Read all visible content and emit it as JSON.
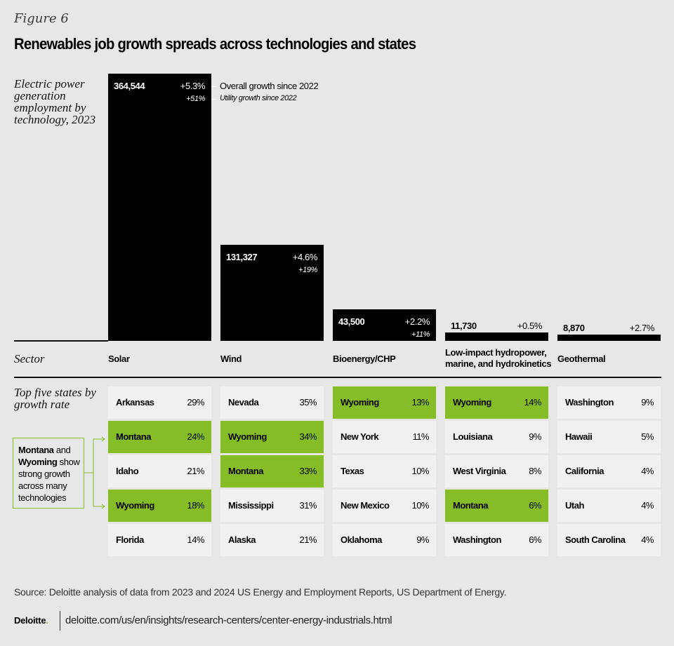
{
  "figure_label": "Figure 6",
  "title": "Renewables job growth spreads across technologies and states",
  "y_label": "Electric power generation employment by technology, 2023",
  "annotations": {
    "overall": "Overall growth since 2022",
    "utility": "Utility growth since 2022"
  },
  "row_labels": {
    "sector": "Sector",
    "top_states": "Top five states by growth rate"
  },
  "callout": {
    "bold1": "Montana",
    "text1": " and ",
    "bold2": "Wyoming",
    "text2": " show strong growth across many technologies"
  },
  "chart_data": {
    "type": "bar",
    "title": "Renewables job growth spreads across technologies and states",
    "ylabel": "Electric power generation employment by technology, 2023",
    "xlabel": "Sector",
    "categories": [
      "Solar",
      "Wind",
      "Bioenergy/CHP",
      "Low-impact hydropower, marine, and hydrokinetics",
      "Geothermal"
    ],
    "values": [
      364544,
      131327,
      43500,
      11730,
      8870
    ],
    "value_labels": [
      "364,544",
      "131,327",
      "43,500",
      "11,730",
      "8,870"
    ],
    "overall_growth_since_2022": [
      "+5.3%",
      "+4.6%",
      "+2.2%",
      "+0.5%",
      "+2.7%"
    ],
    "utility_growth_since_2022": [
      "+51%",
      "+19%",
      "+11%",
      null,
      null
    ],
    "ylim": [
      0,
      364544
    ],
    "grid": false,
    "top_states": [
      [
        {
          "state": "Arkansas",
          "pct": "29%",
          "hl": false
        },
        {
          "state": "Montana",
          "pct": "24%",
          "hl": true
        },
        {
          "state": "Idaho",
          "pct": "21%",
          "hl": false
        },
        {
          "state": "Wyoming",
          "pct": "18%",
          "hl": true
        },
        {
          "state": "Florida",
          "pct": "14%",
          "hl": false
        }
      ],
      [
        {
          "state": "Nevada",
          "pct": "35%",
          "hl": false
        },
        {
          "state": "Wyoming",
          "pct": "34%",
          "hl": true
        },
        {
          "state": "Montana",
          "pct": "33%",
          "hl": true
        },
        {
          "state": "Mississippi",
          "pct": "31%",
          "hl": false
        },
        {
          "state": "Alaska",
          "pct": "21%",
          "hl": false
        }
      ],
      [
        {
          "state": "Wyoming",
          "pct": "13%",
          "hl": true
        },
        {
          "state": "New York",
          "pct": "11%",
          "hl": false
        },
        {
          "state": "Texas",
          "pct": "10%",
          "hl": false
        },
        {
          "state": "New Mexico",
          "pct": "10%",
          "hl": false
        },
        {
          "state": "Oklahoma",
          "pct": "9%",
          "hl": false
        }
      ],
      [
        {
          "state": "Wyoming",
          "pct": "14%",
          "hl": true
        },
        {
          "state": "Louisiana",
          "pct": "9%",
          "hl": false
        },
        {
          "state": "West Virginia",
          "pct": "8%",
          "hl": false
        },
        {
          "state": "Montana",
          "pct": "6%",
          "hl": true
        },
        {
          "state": "Washington",
          "pct": "6%",
          "hl": false
        }
      ],
      [
        {
          "state": "Washington",
          "pct": "9%",
          "hl": false
        },
        {
          "state": "Hawaii",
          "pct": "5%",
          "hl": false
        },
        {
          "state": "California",
          "pct": "4%",
          "hl": false
        },
        {
          "state": "Utah",
          "pct": "4%",
          "hl": false
        },
        {
          "state": "South Carolina",
          "pct": "4%",
          "hl": false
        }
      ]
    ]
  },
  "colors": {
    "bar": "#000000",
    "highlight": "#86bc25",
    "cell": "#f1f1f1",
    "background": "#e6e8e7"
  },
  "source": "Source: Deloitte analysis of data from 2023 and 2024 US Energy and Employment Reports, US Department of Energy.",
  "footer": {
    "logo": "Deloitte",
    "logo_dot": ".",
    "url": "deloitte.com/us/en/insights/research-centers/center-energy-industrials.html"
  }
}
